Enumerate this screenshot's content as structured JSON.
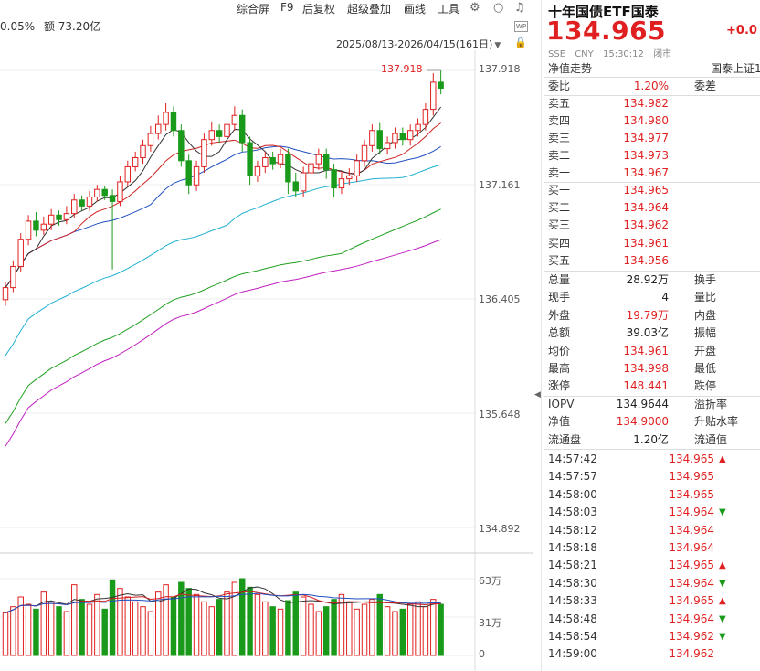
{
  "toolbar": {
    "items": [
      "综合屏",
      "F9",
      "后复权",
      "超级叠加",
      "画线",
      "工具"
    ]
  },
  "info": {
    "change_pct": "0.05%",
    "amount": "额 73.20亿"
  },
  "range": "2025/08/13-2026/04/15(161日)",
  "wp_label": "WP",
  "axis": {
    "price_ticks": [
      "137.918",
      "137.161",
      "136.405",
      "135.648",
      "134.892"
    ],
    "volume_ticks": [
      "63万",
      "31万",
      "0"
    ],
    "max_marker": "137.918"
  },
  "colors": {
    "up": "#e02020",
    "down": "#1a9a1a",
    "ma5": "#333333",
    "ma10": "#d02020",
    "ma20": "#2050c0",
    "ma60": "#20b0d0",
    "ma120": "#20a020",
    "ma250": "#c020c0"
  },
  "quote": {
    "title": "十年国债ETF国泰",
    "price": "134.965",
    "change": "+0.0",
    "sub": [
      "SSE",
      "CNY",
      "15:30:12",
      "闭市"
    ],
    "nav_trend": "净值走势",
    "related": "国泰上证1"
  },
  "ratio": {
    "label": "委比",
    "value": "1.20%",
    "label2": "委差"
  },
  "asks": [
    {
      "label": "卖五",
      "price": "134.982"
    },
    {
      "label": "卖四",
      "price": "134.980"
    },
    {
      "label": "卖三",
      "price": "134.977"
    },
    {
      "label": "卖二",
      "price": "134.973"
    },
    {
      "label": "卖一",
      "price": "134.967"
    }
  ],
  "bids": [
    {
      "label": "买一",
      "price": "134.965"
    },
    {
      "label": "买二",
      "price": "134.964"
    },
    {
      "label": "买三",
      "price": "134.962"
    },
    {
      "label": "买四",
      "price": "134.961"
    },
    {
      "label": "买五",
      "price": "134.956"
    }
  ],
  "stats": [
    {
      "label": "总量",
      "value": "28.92万",
      "color": "blk",
      "label2": "换手"
    },
    {
      "label": "现手",
      "value": "4",
      "color": "blk",
      "label2": "量比"
    },
    {
      "label": "外盘",
      "value": "19.79万",
      "color": "red",
      "label2": "内盘"
    },
    {
      "label": "总额",
      "value": "39.03亿",
      "color": "blk",
      "label2": "振幅"
    },
    {
      "label": "均价",
      "value": "134.961",
      "color": "red",
      "label2": "开盘"
    },
    {
      "label": "最高",
      "value": "134.998",
      "color": "red",
      "label2": "最低"
    },
    {
      "label": "涨停",
      "value": "148.441",
      "color": "red",
      "label2": "跌停"
    }
  ],
  "stats2": [
    {
      "label": "IOPV",
      "value": "134.9644",
      "color": "blk",
      "label2": "溢折率"
    },
    {
      "label": "净值",
      "value": "134.9000",
      "color": "red",
      "label2": "升贴水率"
    },
    {
      "label": "流通盘",
      "value": "1.20亿",
      "color": "blk",
      "label2": "流通值"
    }
  ],
  "ticks": [
    {
      "time": "14:57:42",
      "price": "134.965",
      "dir": "up"
    },
    {
      "time": "14:57:57",
      "price": "134.965",
      "dir": ""
    },
    {
      "time": "14:58:00",
      "price": "134.965",
      "dir": ""
    },
    {
      "time": "14:58:03",
      "price": "134.964",
      "dir": "dn"
    },
    {
      "time": "14:58:12",
      "price": "134.964",
      "dir": ""
    },
    {
      "time": "14:58:18",
      "price": "134.964",
      "dir": ""
    },
    {
      "time": "14:58:21",
      "price": "134.965",
      "dir": "up"
    },
    {
      "time": "14:58:30",
      "price": "134.964",
      "dir": "dn"
    },
    {
      "time": "14:58:33",
      "price": "134.965",
      "dir": "up"
    },
    {
      "time": "14:58:48",
      "price": "134.964",
      "dir": "dn"
    },
    {
      "time": "14:58:54",
      "price": "134.962",
      "dir": "dn"
    },
    {
      "time": "14:59:00",
      "price": "134.962",
      "dir": ""
    }
  ],
  "chart_data": {
    "type": "candlestick",
    "candles": [
      [
        136.4,
        136.48,
        136.52,
        136.36
      ],
      [
        136.48,
        136.62,
        136.66,
        136.45
      ],
      [
        136.62,
        136.8,
        136.84,
        136.58
      ],
      [
        136.8,
        136.92,
        136.96,
        136.76
      ],
      [
        136.92,
        136.86,
        136.98,
        136.82
      ],
      [
        136.86,
        136.9,
        136.95,
        136.83
      ],
      [
        136.9,
        136.96,
        137.0,
        136.86
      ],
      [
        136.96,
        136.93,
        136.99,
        136.89
      ],
      [
        136.93,
        136.97,
        137.02,
        136.9
      ],
      [
        136.97,
        137.06,
        137.1,
        136.94
      ],
      [
        137.06,
        137.02,
        137.09,
        136.99
      ],
      [
        137.02,
        137.08,
        137.12,
        136.99
      ],
      [
        137.08,
        137.13,
        137.16,
        137.05
      ],
      [
        137.13,
        137.09,
        137.15,
        137.06
      ],
      [
        137.09,
        137.05,
        137.13,
        136.6
      ],
      [
        137.05,
        137.18,
        137.22,
        137.02
      ],
      [
        137.18,
        137.28,
        137.32,
        137.15
      ],
      [
        137.28,
        137.34,
        137.38,
        137.25
      ],
      [
        137.34,
        137.42,
        137.46,
        137.3
      ],
      [
        137.42,
        137.5,
        137.55,
        137.38
      ],
      [
        137.5,
        137.56,
        137.62,
        137.46
      ],
      [
        137.56,
        137.64,
        137.7,
        137.52
      ],
      [
        137.64,
        137.52,
        137.68,
        137.48
      ],
      [
        137.52,
        137.32,
        137.56,
        137.28
      ],
      [
        137.32,
        137.16,
        137.36,
        137.1
      ],
      [
        137.16,
        137.28,
        137.32,
        137.12
      ],
      [
        137.28,
        137.46,
        137.5,
        137.24
      ],
      [
        137.46,
        137.52,
        137.58,
        137.42
      ],
      [
        137.52,
        137.48,
        137.56,
        137.44
      ],
      [
        137.48,
        137.56,
        137.62,
        137.45
      ],
      [
        137.56,
        137.62,
        137.68,
        137.52
      ],
      [
        137.62,
        137.44,
        137.66,
        137.38
      ],
      [
        137.44,
        137.22,
        137.48,
        137.16
      ],
      [
        137.22,
        137.28,
        137.32,
        137.18
      ],
      [
        137.28,
        137.34,
        137.38,
        137.24
      ],
      [
        137.34,
        137.3,
        137.38,
        137.26
      ],
      [
        137.3,
        137.36,
        137.4,
        137.27
      ],
      [
        137.36,
        137.18,
        137.4,
        137.1
      ],
      [
        137.18,
        137.12,
        137.24,
        137.08
      ],
      [
        137.12,
        137.24,
        137.28,
        137.08
      ],
      [
        137.24,
        137.3,
        137.36,
        137.2
      ],
      [
        137.3,
        137.36,
        137.4,
        137.26
      ],
      [
        137.36,
        137.26,
        137.4,
        137.2
      ],
      [
        137.26,
        137.14,
        137.3,
        137.08
      ],
      [
        137.14,
        137.2,
        137.24,
        137.1
      ],
      [
        137.2,
        137.22,
        137.27,
        137.16
      ],
      [
        137.22,
        137.32,
        137.36,
        137.18
      ],
      [
        137.32,
        137.42,
        137.46,
        137.28
      ],
      [
        137.42,
        137.52,
        137.56,
        137.38
      ],
      [
        137.52,
        137.4,
        137.57,
        137.36
      ],
      [
        137.4,
        137.44,
        137.48,
        137.36
      ],
      [
        137.44,
        137.5,
        137.54,
        137.4
      ],
      [
        137.5,
        137.46,
        137.54,
        137.42
      ],
      [
        137.46,
        137.52,
        137.56,
        137.42
      ],
      [
        137.52,
        137.56,
        137.6,
        137.48
      ],
      [
        137.56,
        137.66,
        137.7,
        137.52
      ],
      [
        137.66,
        137.84,
        137.9,
        137.62
      ],
      [
        137.84,
        137.8,
        137.918,
        137.76
      ]
    ],
    "volume": [
      35,
      40,
      48,
      42,
      38,
      52,
      44,
      40,
      36,
      58,
      46,
      42,
      50,
      38,
      62,
      55,
      48,
      44,
      40,
      36,
      52,
      58,
      48,
      60,
      55,
      50,
      44,
      40,
      46,
      52,
      60,
      63,
      56,
      50,
      44,
      40,
      38,
      45,
      52,
      48,
      42,
      36,
      40,
      46,
      50,
      44,
      38,
      42,
      46,
      50,
      40,
      36,
      38,
      42,
      44,
      40,
      46,
      42
    ],
    "price_ylim": [
      134.892,
      137.918
    ],
    "volume_ylim": [
      0,
      63
    ]
  }
}
